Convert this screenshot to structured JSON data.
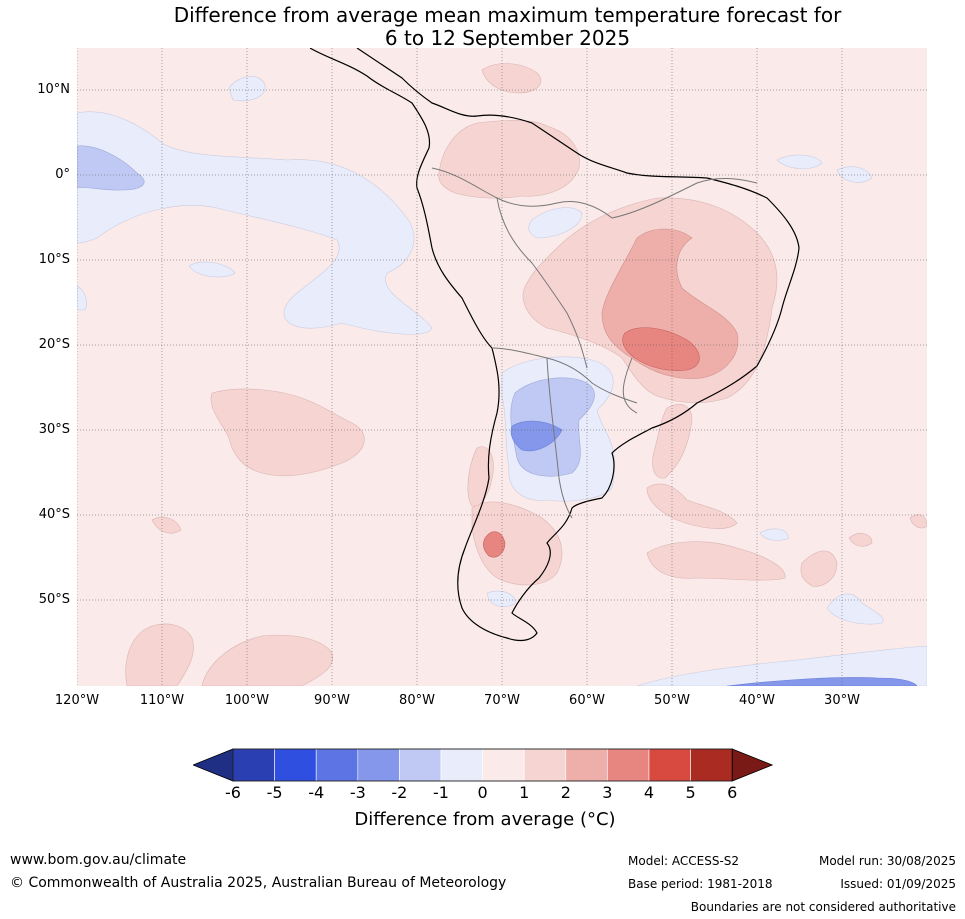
{
  "title_line1": "Difference from average mean maximum temperature forecast for",
  "title_line2": "6 to 12 September 2025",
  "lat_labels": [
    "10°N",
    "0°",
    "10°S",
    "20°S",
    "30°S",
    "40°S",
    "50°S"
  ],
  "lon_labels": [
    "120°W",
    "110°W",
    "100°W",
    "90°W",
    "80°W",
    "70°W",
    "60°W",
    "50°W",
    "40°W",
    "30°W"
  ],
  "colorbar": {
    "ticks": [
      "-6",
      "-5",
      "-4",
      "-3",
      "-2",
      "-1",
      "0",
      "1",
      "2",
      "3",
      "4",
      "5",
      "6"
    ],
    "colors": [
      "#1f2f84",
      "#2a3fb2",
      "#2f4fe0",
      "#5c74e4",
      "#8497ea",
      "#c0c9f3",
      "#e8ecfb",
      "#fbeaea",
      "#f6d4d2",
      "#eeaeaa",
      "#e78580",
      "#d84a40",
      "#aa2b22",
      "#7a1a16"
    ],
    "label": "Difference from average (°C)"
  },
  "footer": {
    "url": "www.bom.gov.au/climate",
    "copyright": "© Commonwealth of Australia 2025, Australian Bureau of Meteorology",
    "model": "Model: ACCESS-S2",
    "base_period": "Base period: 1981-2018",
    "model_run": "Model run: 30/08/2025",
    "issued": "Issued: 01/09/2025",
    "disclaimer": "Boundaries are not considered authoritative"
  }
}
